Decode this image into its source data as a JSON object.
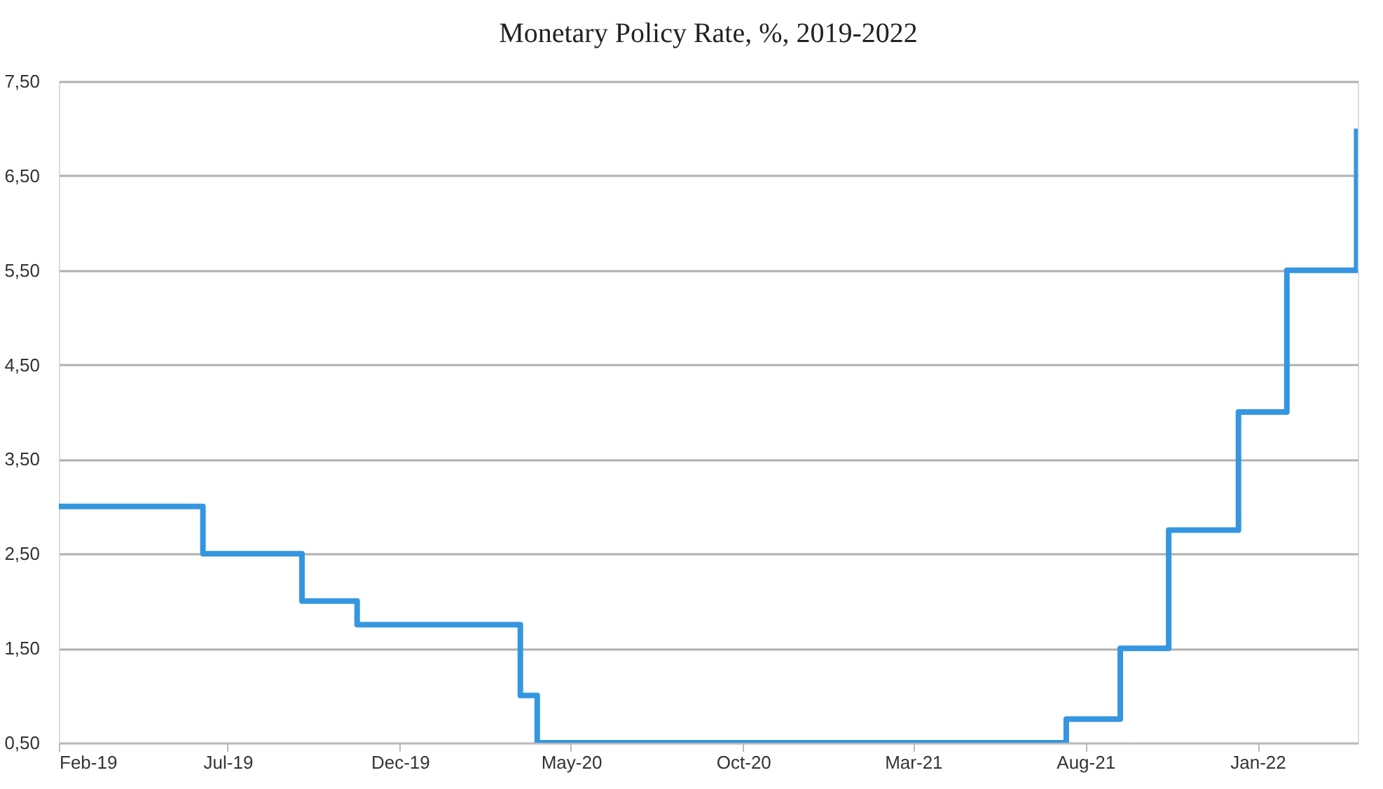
{
  "chart_data": {
    "type": "step",
    "title": "Monetary Policy Rate, %, 2019-2022",
    "x": [
      "2019-02-01",
      "2019-06-09",
      "2019-09-05",
      "2019-10-24",
      "2020-03-17",
      "2020-04-01",
      "2021-07-15",
      "2021-09-01",
      "2021-10-14",
      "2021-12-15",
      "2022-01-27",
      "2022-03-30"
    ],
    "series": [
      {
        "color": "#3596e0",
        "values": [
          3.0,
          2.5,
          2.0,
          1.75,
          1.0,
          0.5,
          0.75,
          1.5,
          2.75,
          4.0,
          5.5,
          7.0
        ]
      }
    ],
    "xlim": [
      "2019-02-01",
      "2022-03-31"
    ],
    "xticks": [
      {
        "value": "2019-02-01",
        "label": "Feb-19"
      },
      {
        "value": "2019-07-01",
        "label": "Jul-19"
      },
      {
        "value": "2019-12-01",
        "label": "Dec-19"
      },
      {
        "value": "2020-05-01",
        "label": "May-20"
      },
      {
        "value": "2020-10-01",
        "label": "Oct-20"
      },
      {
        "value": "2021-03-01",
        "label": "Mar-21"
      },
      {
        "value": "2021-08-01",
        "label": "Aug-21"
      },
      {
        "value": "2022-01-01",
        "label": "Jan-22"
      }
    ],
    "ylim": [
      0.5,
      7.5
    ],
    "yticks": [
      {
        "value": 0.5,
        "label": "0,50"
      },
      {
        "value": 1.5,
        "label": "1,50"
      },
      {
        "value": 2.5,
        "label": "2,50"
      },
      {
        "value": 3.5,
        "label": "3,50"
      },
      {
        "value": 4.5,
        "label": "4,50"
      },
      {
        "value": 5.5,
        "label": "5,50"
      },
      {
        "value": 6.5,
        "label": "6,50"
      },
      {
        "value": 7.5,
        "label": "7,50"
      }
    ],
    "grid": "y",
    "line_style": "solid"
  }
}
